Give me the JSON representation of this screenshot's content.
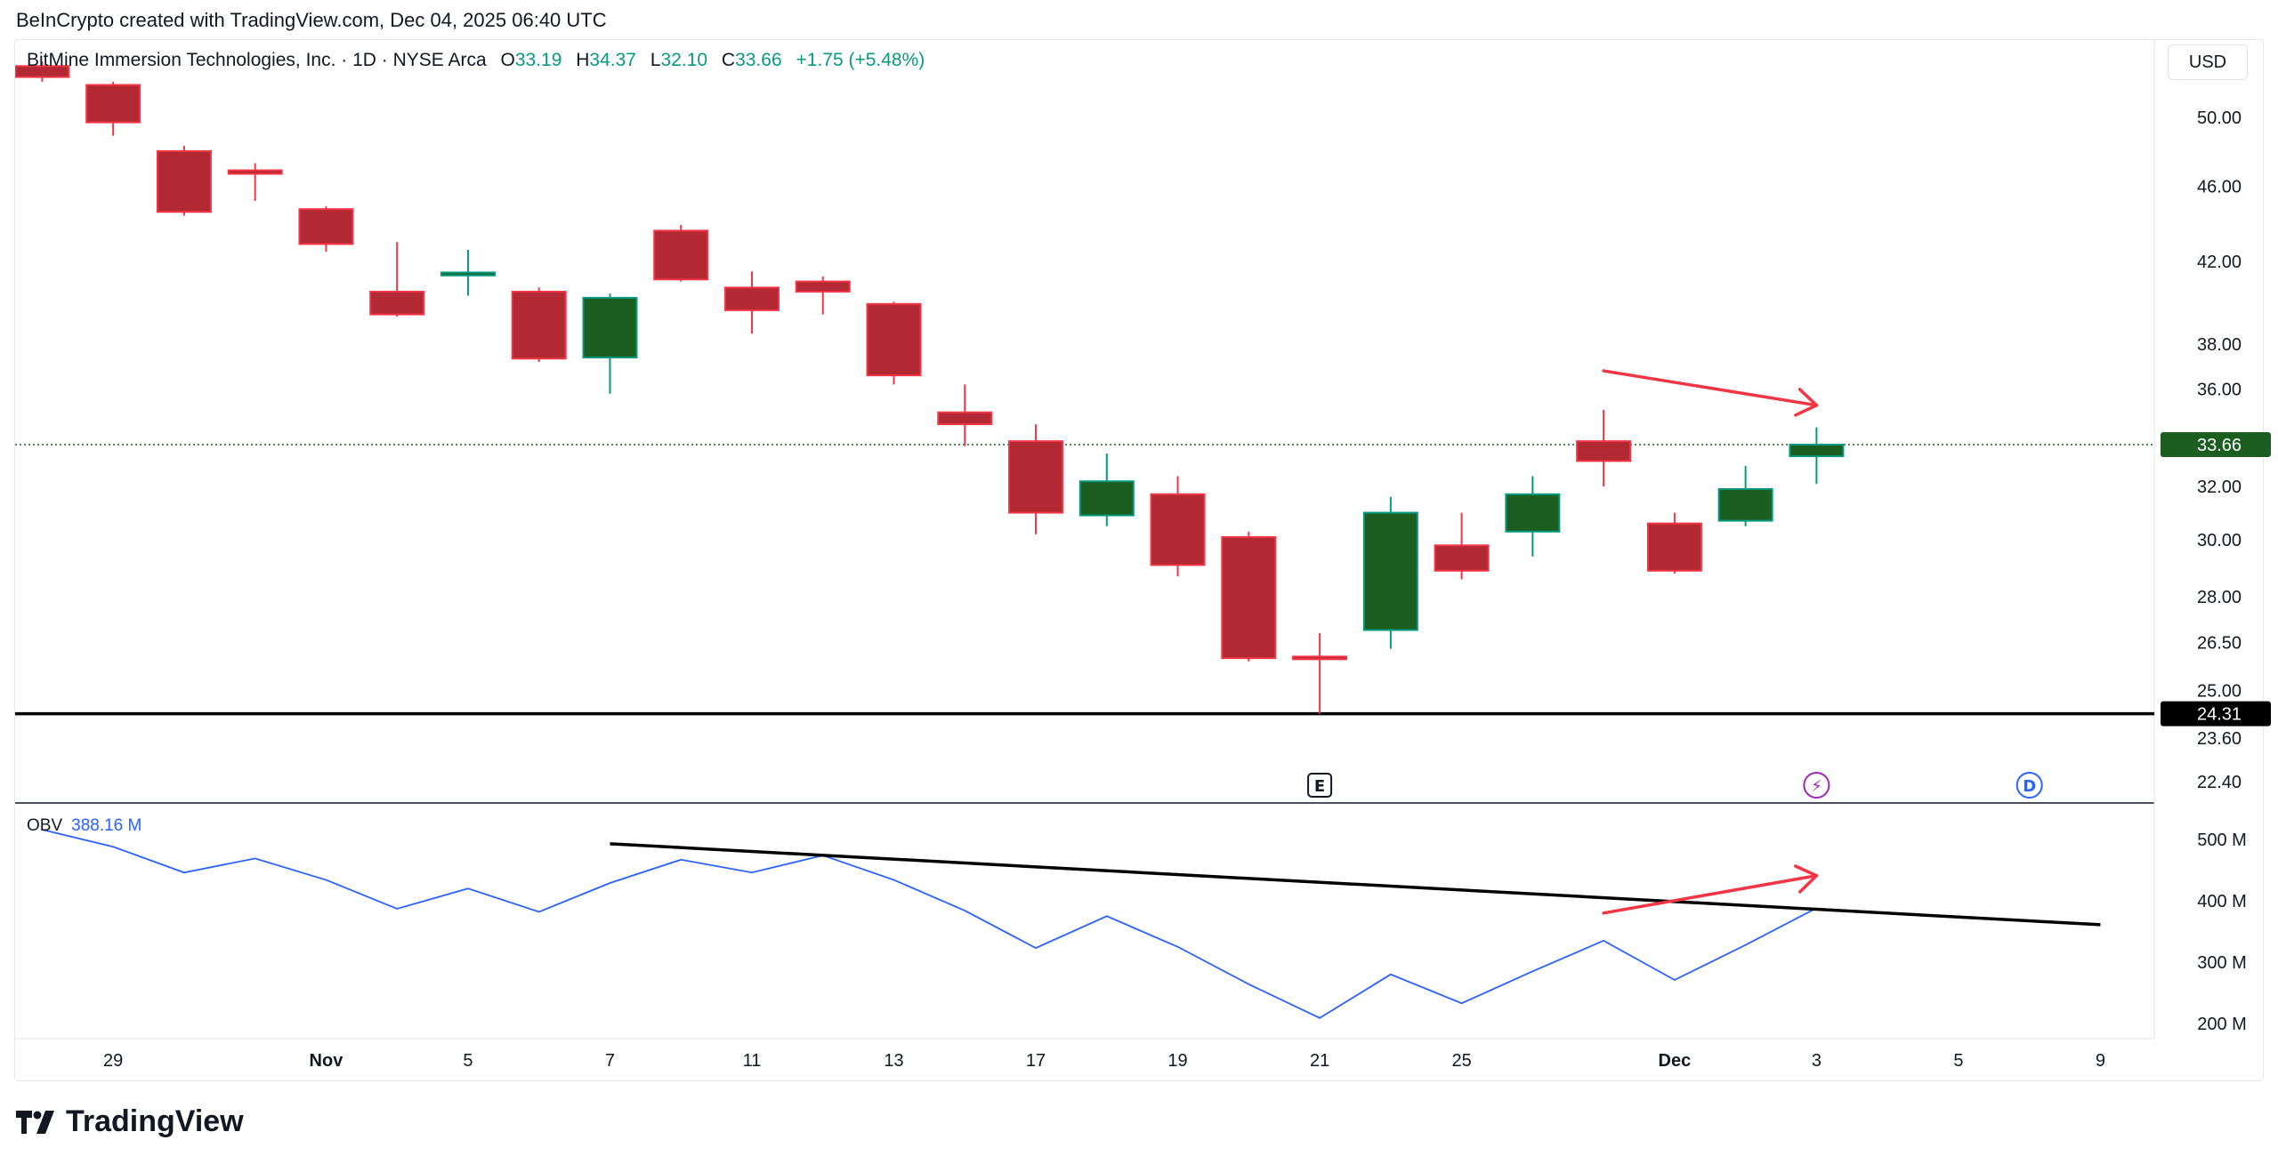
{
  "credit": "BeInCrypto created with TradingView.com, Dec 04, 2025 06:40 UTC",
  "legend": {
    "symbol": "BitMine Immersion Technologies, Inc. · 1D · NYSE Arca",
    "o_label": "O",
    "o": "33.19",
    "h_label": "H",
    "h": "34.37",
    "l_label": "L",
    "l": "32.10",
    "c_label": "C",
    "c": "33.66",
    "change": "+1.75 (+5.48%)"
  },
  "currency": "USD",
  "obv_legend": {
    "name": "OBV",
    "value": "388.16 M"
  },
  "logo_text": "TradingView",
  "colors": {
    "up_body": "#1b5e20",
    "up_border": "#089981",
    "down_body": "#b22833",
    "down_border": "#f23645",
    "obv_line": "#2962ff",
    "annotation_red": "#f23645",
    "trendline": "#000000"
  },
  "chart_data": {
    "type": "candlestick",
    "price_scale": "log",
    "ylim": [
      22.0,
      54.0
    ],
    "obv_ylim": [
      170,
      560
    ],
    "dates": [
      "Oct 28",
      "Oct 29",
      "Oct 30",
      "Oct 31",
      "Nov 03",
      "Nov 04",
      "Nov 05",
      "Nov 06",
      "Nov 07",
      "Nov 10",
      "Nov 11",
      "Nov 12",
      "Nov 13",
      "Nov 14",
      "Nov 17",
      "Nov 18",
      "Nov 19",
      "Nov 20",
      "Nov 21",
      "Nov 24",
      "Nov 25",
      "Nov 26",
      "Nov 28",
      "Dec 01",
      "Dec 02",
      "Dec 03",
      "Dec 04",
      "Dec 05",
      "Dec 08",
      "Dec 09"
    ],
    "candles": [
      {
        "date": "Oct 28",
        "o": 53.2,
        "h": 53.5,
        "l": 52.2,
        "c": 52.5
      },
      {
        "date": "Oct 29",
        "o": 52.0,
        "h": 52.2,
        "l": 48.9,
        "c": 49.7
      },
      {
        "date": "Oct 30",
        "o": 48.0,
        "h": 48.3,
        "l": 44.4,
        "c": 44.6
      },
      {
        "date": "Oct 31",
        "o": 46.9,
        "h": 47.3,
        "l": 45.2,
        "c": 46.7
      },
      {
        "date": "Nov 03",
        "o": 44.75,
        "h": 44.9,
        "l": 42.5,
        "c": 42.9
      },
      {
        "date": "Nov 04",
        "o": 40.5,
        "h": 43.0,
        "l": 39.3,
        "c": 39.4
      },
      {
        "date": "Nov 05",
        "o": 41.3,
        "h": 42.6,
        "l": 40.3,
        "c": 41.45
      },
      {
        "date": "Nov 06",
        "o": 40.5,
        "h": 40.7,
        "l": 37.2,
        "c": 37.35
      },
      {
        "date": "Nov 07",
        "o": 37.4,
        "h": 40.4,
        "l": 35.8,
        "c": 40.2
      },
      {
        "date": "Nov 10",
        "o": 43.6,
        "h": 43.9,
        "l": 41.0,
        "c": 41.1
      },
      {
        "date": "Nov 11",
        "o": 40.7,
        "h": 41.5,
        "l": 38.5,
        "c": 39.6
      },
      {
        "date": "Nov 12",
        "o": 41.0,
        "h": 41.25,
        "l": 39.4,
        "c": 40.5
      },
      {
        "date": "Nov 13",
        "o": 39.9,
        "h": 40.0,
        "l": 36.2,
        "c": 36.6
      },
      {
        "date": "Nov 14",
        "o": 35.0,
        "h": 36.2,
        "l": 33.6,
        "c": 34.5
      },
      {
        "date": "Nov 17",
        "o": 33.8,
        "h": 34.5,
        "l": 30.2,
        "c": 31.0
      },
      {
        "date": "Nov 18",
        "o": 30.9,
        "h": 33.3,
        "l": 30.5,
        "c": 32.2
      },
      {
        "date": "Nov 19",
        "o": 31.7,
        "h": 32.4,
        "l": 28.7,
        "c": 29.1
      },
      {
        "date": "Nov 20",
        "o": 30.1,
        "h": 30.3,
        "l": 25.9,
        "c": 26.0
      },
      {
        "date": "Nov 21",
        "o": 26.05,
        "h": 26.8,
        "l": 24.31,
        "c": 26.0
      },
      {
        "date": "Nov 24",
        "o": 26.9,
        "h": 31.6,
        "l": 26.3,
        "c": 31.0
      },
      {
        "date": "Nov 25",
        "o": 29.8,
        "h": 31.0,
        "l": 28.6,
        "c": 28.9
      },
      {
        "date": "Nov 26",
        "o": 30.3,
        "h": 32.4,
        "l": 29.4,
        "c": 31.7
      },
      {
        "date": "Nov 28",
        "o": 33.8,
        "h": 35.1,
        "l": 32.0,
        "c": 33.0
      },
      {
        "date": "Dec 01",
        "o": 30.6,
        "h": 31.0,
        "l": 28.8,
        "c": 28.9
      },
      {
        "date": "Dec 02",
        "o": 30.7,
        "h": 32.8,
        "l": 30.5,
        "c": 31.9
      },
      {
        "date": "Dec 03",
        "o": 33.19,
        "h": 34.37,
        "l": 32.1,
        "c": 33.66
      }
    ],
    "obv": [
      {
        "date": "Oct 28",
        "v": 516
      },
      {
        "date": "Oct 29",
        "v": 488
      },
      {
        "date": "Oct 30",
        "v": 446
      },
      {
        "date": "Oct 31",
        "v": 469
      },
      {
        "date": "Nov 03",
        "v": 434
      },
      {
        "date": "Nov 04",
        "v": 387
      },
      {
        "date": "Nov 05",
        "v": 420
      },
      {
        "date": "Nov 06",
        "v": 382
      },
      {
        "date": "Nov 07",
        "v": 429
      },
      {
        "date": "Nov 10",
        "v": 467
      },
      {
        "date": "Nov 11",
        "v": 446
      },
      {
        "date": "Nov 12",
        "v": 474
      },
      {
        "date": "Nov 13",
        "v": 434
      },
      {
        "date": "Nov 14",
        "v": 384
      },
      {
        "date": "Nov 17",
        "v": 323
      },
      {
        "date": "Nov 18",
        "v": 375
      },
      {
        "date": "Nov 19",
        "v": 325
      },
      {
        "date": "Nov 20",
        "v": 264
      },
      {
        "date": "Nov 21",
        "v": 209
      },
      {
        "date": "Nov 24",
        "v": 280
      },
      {
        "date": "Nov 25",
        "v": 233
      },
      {
        "date": "Nov 26",
        "v": 285
      },
      {
        "date": "Nov 28",
        "v": 335
      },
      {
        "date": "Dec 01",
        "v": 271
      },
      {
        "date": "Dec 02",
        "v": 328
      },
      {
        "date": "Dec 03",
        "v": 388.16
      }
    ],
    "price_ticks": [
      "50.00",
      "46.00",
      "42.00",
      "38.00",
      "36.00",
      "32.00",
      "30.00",
      "28.00",
      "26.50",
      "25.00",
      "23.60",
      "22.40"
    ],
    "obv_ticks": [
      {
        "v": 500,
        "label": "500 M"
      },
      {
        "v": 400,
        "label": "400 M"
      },
      {
        "v": 300,
        "label": "300 M"
      },
      {
        "v": 200,
        "label": "200 M"
      }
    ],
    "x_ticks": [
      {
        "date": "Oct 29",
        "label": "29"
      },
      {
        "date": "Nov 03",
        "label": "Nov",
        "bold": true
      },
      {
        "date": "Nov 05",
        "label": "5"
      },
      {
        "date": "Nov 07",
        "label": "7"
      },
      {
        "date": "Nov 11",
        "label": "11"
      },
      {
        "date": "Nov 13",
        "label": "13"
      },
      {
        "date": "Nov 17",
        "label": "17"
      },
      {
        "date": "Nov 19",
        "label": "19"
      },
      {
        "date": "Nov 21",
        "label": "21"
      },
      {
        "date": "Nov 25",
        "label": "25"
      },
      {
        "date": "Dec 01",
        "label": "Dec",
        "bold": true
      },
      {
        "date": "Dec 03",
        "label": "3"
      },
      {
        "date": "Dec 05",
        "label": "5"
      },
      {
        "date": "Dec 09",
        "label": "9"
      }
    ],
    "last_price": {
      "value": 33.66,
      "label": "33.66"
    },
    "support": {
      "value": 24.31,
      "label": "24.31"
    },
    "annotations": {
      "price_arrow": {
        "from": {
          "date": "Nov 28",
          "price": 36.8
        },
        "to": {
          "date": "Dec 03",
          "price": 35.3
        }
      },
      "obv_trendline": {
        "from": {
          "date": "Nov 07",
          "v": 493
        },
        "to": {
          "date": "Dec 09",
          "v": 361
        }
      },
      "obv_arrow": {
        "from": {
          "date": "Nov 28",
          "v": 380
        },
        "to": {
          "date": "Dec 03",
          "v": 441
        }
      }
    },
    "events": [
      {
        "date": "Nov 21",
        "type": "earnings",
        "label": "E"
      },
      {
        "date": "Dec 03",
        "type": "split-lightning",
        "label": "⚡"
      },
      {
        "date": "Dec 08",
        "type": "dividend",
        "label": "D"
      }
    ]
  }
}
